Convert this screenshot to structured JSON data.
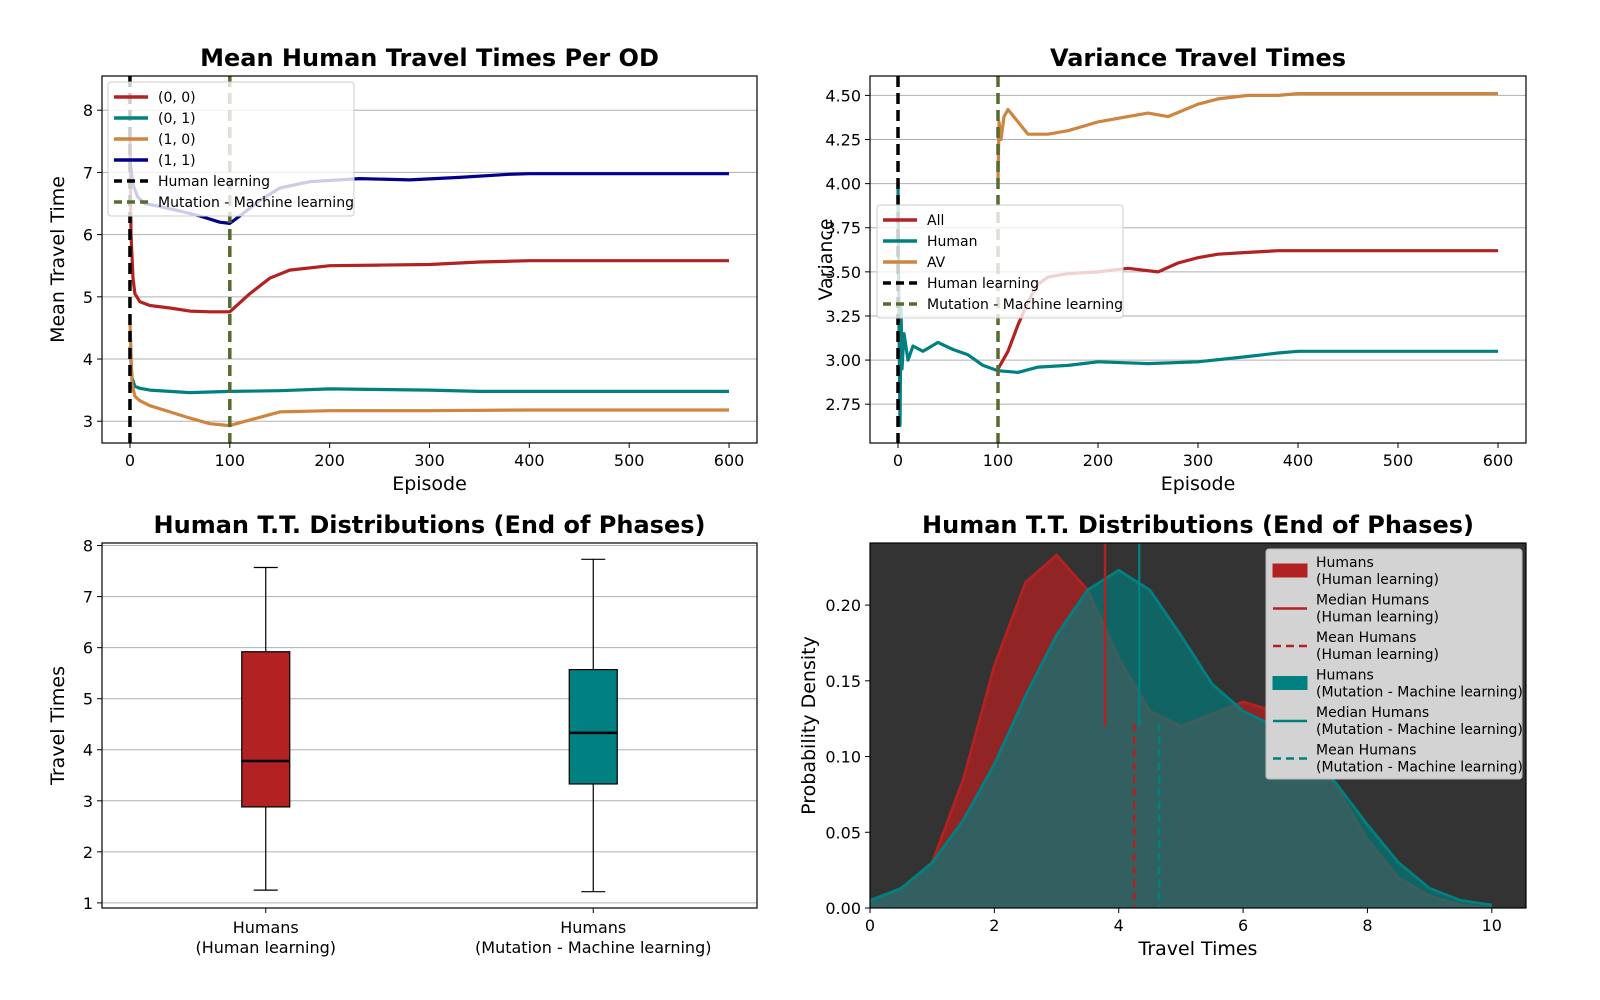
{
  "colors": {
    "red": "#b22222",
    "teal": "#008080",
    "orange": "#cd853f",
    "navy": "#00008b",
    "black": "#000000",
    "olive": "#556b2f",
    "grid": "#b0b0b0",
    "dark_bg": "#333333",
    "legend_bg": "#d3d3d3"
  },
  "chart_data": [
    {
      "id": "mean_tt",
      "type": "line",
      "title": "Mean Human Travel Times Per OD",
      "xlabel": "Episode",
      "ylabel": "Mean Travel Time",
      "xlim": [
        -28,
        628
      ],
      "ylim": [
        2.65,
        8.55
      ],
      "xticks": [
        0,
        100,
        200,
        300,
        400,
        500,
        600
      ],
      "yticks": [
        3,
        4,
        5,
        6,
        7,
        8
      ],
      "grid": "horizontal",
      "legend_position": "upper-left",
      "series": [
        {
          "name": "(0, 0)",
          "color_key": "red",
          "x": [
            0,
            1,
            3,
            5,
            10,
            20,
            40,
            60,
            80,
            100,
            120,
            140,
            160,
            200,
            250,
            300,
            350,
            400,
            500,
            600
          ],
          "y": [
            7.6,
            6.0,
            5.3,
            5.05,
            4.92,
            4.86,
            4.82,
            4.77,
            4.76,
            4.76,
            5.05,
            5.3,
            5.43,
            5.5,
            5.51,
            5.52,
            5.56,
            5.58,
            5.58,
            5.58
          ]
        },
        {
          "name": "(0, 1)",
          "color_key": "teal",
          "x": [
            0,
            2,
            5,
            10,
            20,
            40,
            60,
            80,
            100,
            150,
            200,
            250,
            300,
            350,
            400,
            500,
            600
          ],
          "y": [
            4.2,
            3.7,
            3.56,
            3.53,
            3.5,
            3.48,
            3.46,
            3.47,
            3.48,
            3.49,
            3.52,
            3.51,
            3.5,
            3.48,
            3.48,
            3.48,
            3.48
          ]
        },
        {
          "name": "(1, 0)",
          "color_key": "orange",
          "x": [
            0,
            2,
            5,
            10,
            20,
            40,
            60,
            80,
            100,
            120,
            150,
            200,
            250,
            300,
            400,
            500,
            600
          ],
          "y": [
            4.6,
            3.6,
            3.4,
            3.33,
            3.25,
            3.15,
            3.05,
            2.96,
            2.93,
            3.02,
            3.15,
            3.17,
            3.17,
            3.17,
            3.18,
            3.18,
            3.18
          ]
        },
        {
          "name": "(1, 1)",
          "color_key": "navy",
          "x": [
            0,
            3,
            8,
            15,
            30,
            50,
            70,
            90,
            100,
            110,
            130,
            150,
            180,
            230,
            280,
            330,
            380,
            400,
            500,
            600
          ],
          "y": [
            7.2,
            6.8,
            6.6,
            6.5,
            6.45,
            6.38,
            6.3,
            6.2,
            6.18,
            6.3,
            6.55,
            6.75,
            6.85,
            6.9,
            6.88,
            6.92,
            6.97,
            6.98,
            6.98,
            6.98
          ]
        }
      ],
      "vlines": [
        {
          "name": "Human learning",
          "x": 0,
          "color_key": "black"
        },
        {
          "name": "Mutation - Machine learning",
          "x": 100,
          "color_key": "olive"
        }
      ]
    },
    {
      "id": "variance_tt",
      "type": "line",
      "title": "Variance Travel Times",
      "xlabel": "Episode",
      "ylabel": "Variance",
      "xlim": [
        -28,
        628
      ],
      "ylim": [
        2.53,
        4.61
      ],
      "xticks": [
        0,
        100,
        200,
        300,
        400,
        500,
        600
      ],
      "yticks": [
        2.75,
        3.0,
        3.25,
        3.5,
        3.75,
        4.0,
        4.25,
        4.5
      ],
      "yticklabels": [
        "2.75",
        "3.00",
        "3.25",
        "3.50",
        "3.75",
        "4.00",
        "4.25",
        "4.50"
      ],
      "grid": "horizontal",
      "legend_position": "center-left",
      "series": [
        {
          "name": "All",
          "color_key": "red",
          "x": [
            100,
            110,
            120,
            130,
            140,
            150,
            170,
            200,
            230,
            260,
            280,
            300,
            320,
            350,
            380,
            400,
            500,
            600
          ],
          "y": [
            2.95,
            3.05,
            3.2,
            3.33,
            3.43,
            3.47,
            3.49,
            3.5,
            3.52,
            3.5,
            3.55,
            3.58,
            3.6,
            3.61,
            3.62,
            3.62,
            3.62,
            3.62
          ]
        },
        {
          "name": "Human",
          "color_key": "teal",
          "x": [
            0,
            1,
            2,
            3,
            4,
            6,
            10,
            15,
            25,
            40,
            55,
            70,
            85,
            100,
            120,
            140,
            170,
            200,
            250,
            300,
            350,
            380,
            400,
            500,
            600
          ],
          "y": [
            4.0,
            3.2,
            2.63,
            3.3,
            2.95,
            3.15,
            3.0,
            3.08,
            3.05,
            3.1,
            3.06,
            3.03,
            2.97,
            2.94,
            2.93,
            2.96,
            2.97,
            2.99,
            2.98,
            2.99,
            3.02,
            3.04,
            3.05,
            3.05,
            3.05
          ]
        },
        {
          "name": "AV",
          "color_key": "orange",
          "x": [
            100,
            101,
            103,
            106,
            110,
            120,
            130,
            150,
            170,
            200,
            230,
            250,
            270,
            300,
            320,
            350,
            380,
            400,
            500,
            600
          ],
          "y": [
            4.02,
            4.35,
            4.25,
            4.38,
            4.42,
            4.35,
            4.28,
            4.28,
            4.3,
            4.35,
            4.38,
            4.4,
            4.38,
            4.45,
            4.48,
            4.5,
            4.5,
            4.51,
            4.51,
            4.51
          ]
        }
      ],
      "vlines": [
        {
          "name": "Human learning",
          "x": 0,
          "color_key": "black"
        },
        {
          "name": "Mutation - Machine learning",
          "x": 100,
          "color_key": "olive"
        }
      ]
    },
    {
      "id": "box_tt",
      "type": "box",
      "title": "Human T.T. Distributions (End of Phases)",
      "ylabel": "Travel Times",
      "ylim": [
        0.9,
        8.05
      ],
      "yticks": [
        1,
        2,
        3,
        4,
        5,
        6,
        7,
        8
      ],
      "grid": "horizontal",
      "boxes": [
        {
          "label_line1": "Humans",
          "label_line2": "(Human learning)",
          "color_key": "red",
          "whisker_low": 1.25,
          "q1": 2.88,
          "median": 3.78,
          "q3": 5.92,
          "whisker_high": 7.57
        },
        {
          "label_line1": "Humans",
          "label_line2": "(Mutation - Machine learning)",
          "color_key": "teal",
          "whisker_low": 1.22,
          "q1": 3.33,
          "median": 4.33,
          "q3": 5.57,
          "whisker_high": 7.73
        }
      ]
    },
    {
      "id": "kde_tt",
      "type": "area",
      "title": "Human T.T. Distributions (End of Phases)",
      "xlabel": "Travel Times",
      "ylabel": "Probability Density",
      "xlim": [
        0,
        10.55
      ],
      "ylim": [
        0,
        0.241
      ],
      "xticks": [
        0,
        2,
        4,
        6,
        8,
        10
      ],
      "yticks": [
        0.0,
        0.05,
        0.1,
        0.15,
        0.2
      ],
      "yticklabels": [
        "0.00",
        "0.05",
        "0.10",
        "0.15",
        "0.20"
      ],
      "grid": "off",
      "legend_position": "top-right",
      "series": [
        {
          "name": "Humans (Human learning)",
          "color_key": "red",
          "x": [
            0,
            0.5,
            1,
            1.5,
            2,
            2.5,
            3,
            3.5,
            4,
            4.5,
            5,
            5.5,
            6,
            6.5,
            7,
            7.5,
            8,
            8.5,
            9,
            9.5,
            10
          ],
          "y": [
            0.005,
            0.012,
            0.03,
            0.085,
            0.16,
            0.215,
            0.233,
            0.21,
            0.165,
            0.13,
            0.12,
            0.128,
            0.136,
            0.13,
            0.11,
            0.08,
            0.045,
            0.02,
            0.008,
            0.002,
            0.0
          ]
        },
        {
          "name": "Humans (Mutation - Machine learning)",
          "color_key": "teal",
          "x": [
            0,
            0.5,
            1,
            1.5,
            2,
            2.5,
            3,
            3.5,
            4,
            4.5,
            5,
            5.5,
            6,
            6.5,
            7,
            7.5,
            8,
            8.5,
            9,
            9.5,
            10
          ],
          "y": [
            0.005,
            0.013,
            0.03,
            0.058,
            0.095,
            0.14,
            0.18,
            0.21,
            0.223,
            0.21,
            0.18,
            0.148,
            0.13,
            0.12,
            0.105,
            0.082,
            0.055,
            0.03,
            0.013,
            0.005,
            0.002
          ]
        }
      ],
      "median_lines": [
        {
          "name": "Median Humans (Human learning)",
          "x": 3.78,
          "y_bottom": 0.12,
          "color_key": "red",
          "style": "solid"
        },
        {
          "name": "Median Humans (Mutation - Machine learning)",
          "x": 4.33,
          "y_bottom": 0.12,
          "color_key": "teal",
          "style": "solid"
        }
      ],
      "mean_lines": [
        {
          "name": "Mean Humans (Human learning)",
          "x": 4.25,
          "y_top": 0.122,
          "color_key": "red",
          "style": "dashed"
        },
        {
          "name": "Mean Humans (Mutation - Machine learning)",
          "x": 4.65,
          "y_top": 0.122,
          "color_key": "teal",
          "style": "dashed"
        }
      ],
      "legend": [
        {
          "kind": "patch",
          "color_key": "red",
          "line1": "Humans",
          "line2": "(Human learning)"
        },
        {
          "kind": "line",
          "color_key": "red",
          "line1": "Median Humans",
          "line2": "(Human learning)"
        },
        {
          "kind": "dash",
          "color_key": "red",
          "line1": "Mean Humans",
          "line2": "(Human learning)"
        },
        {
          "kind": "patch",
          "color_key": "teal",
          "line1": "Humans",
          "line2": "(Mutation - Machine learning)"
        },
        {
          "kind": "line",
          "color_key": "teal",
          "line1": "Median Humans",
          "line2": "(Mutation - Machine learning)"
        },
        {
          "kind": "dash",
          "color_key": "teal",
          "line1": "Mean Humans",
          "line2": "(Mutation - Machine learning)"
        }
      ]
    }
  ]
}
